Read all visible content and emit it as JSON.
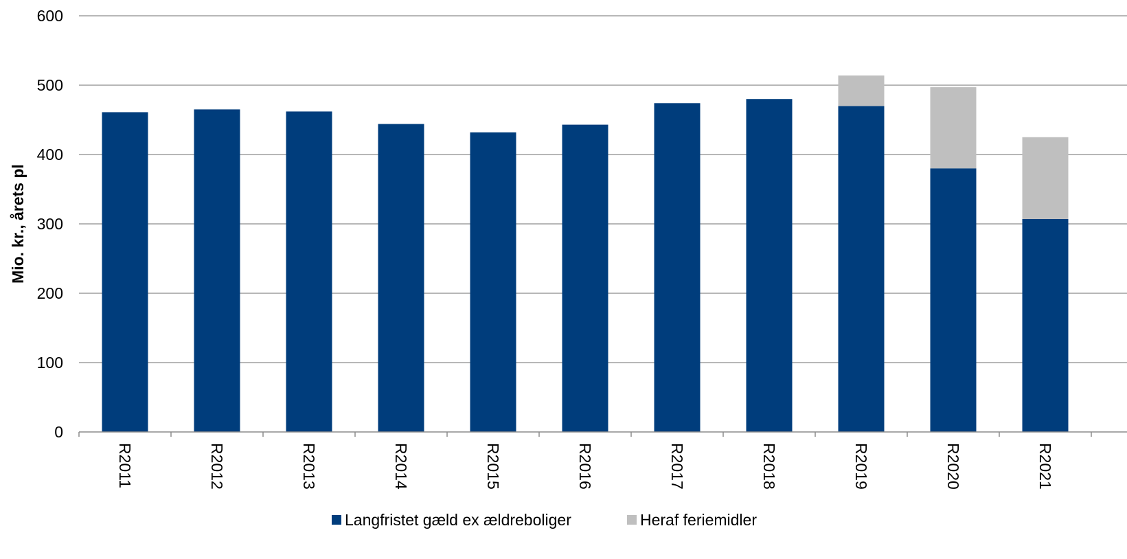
{
  "chart_data": {
    "type": "bar",
    "stacked": true,
    "ylabel": "Mio. kr., årets pl",
    "xlabel": "",
    "ylim": [
      0,
      600
    ],
    "yticks": [
      0,
      100,
      200,
      300,
      400,
      500,
      600
    ],
    "grid": true,
    "legend_position": "bottom",
    "categories": [
      "R2011",
      "R2012",
      "R2013",
      "R2014",
      "R2015",
      "R2016",
      "R2017",
      "R2018",
      "R2019",
      "R2020",
      "R2021"
    ],
    "series": [
      {
        "name": "Langfristet gæld ex ældreboliger",
        "color": "#003D7C",
        "values": [
          461,
          465,
          462,
          444,
          432,
          443,
          474,
          480,
          470,
          380,
          307
        ]
      },
      {
        "name": "Heraf feriemidler",
        "color": "#BFBFBF",
        "values": [
          0,
          0,
          0,
          0,
          0,
          0,
          0,
          0,
          44,
          117,
          118
        ]
      }
    ]
  }
}
